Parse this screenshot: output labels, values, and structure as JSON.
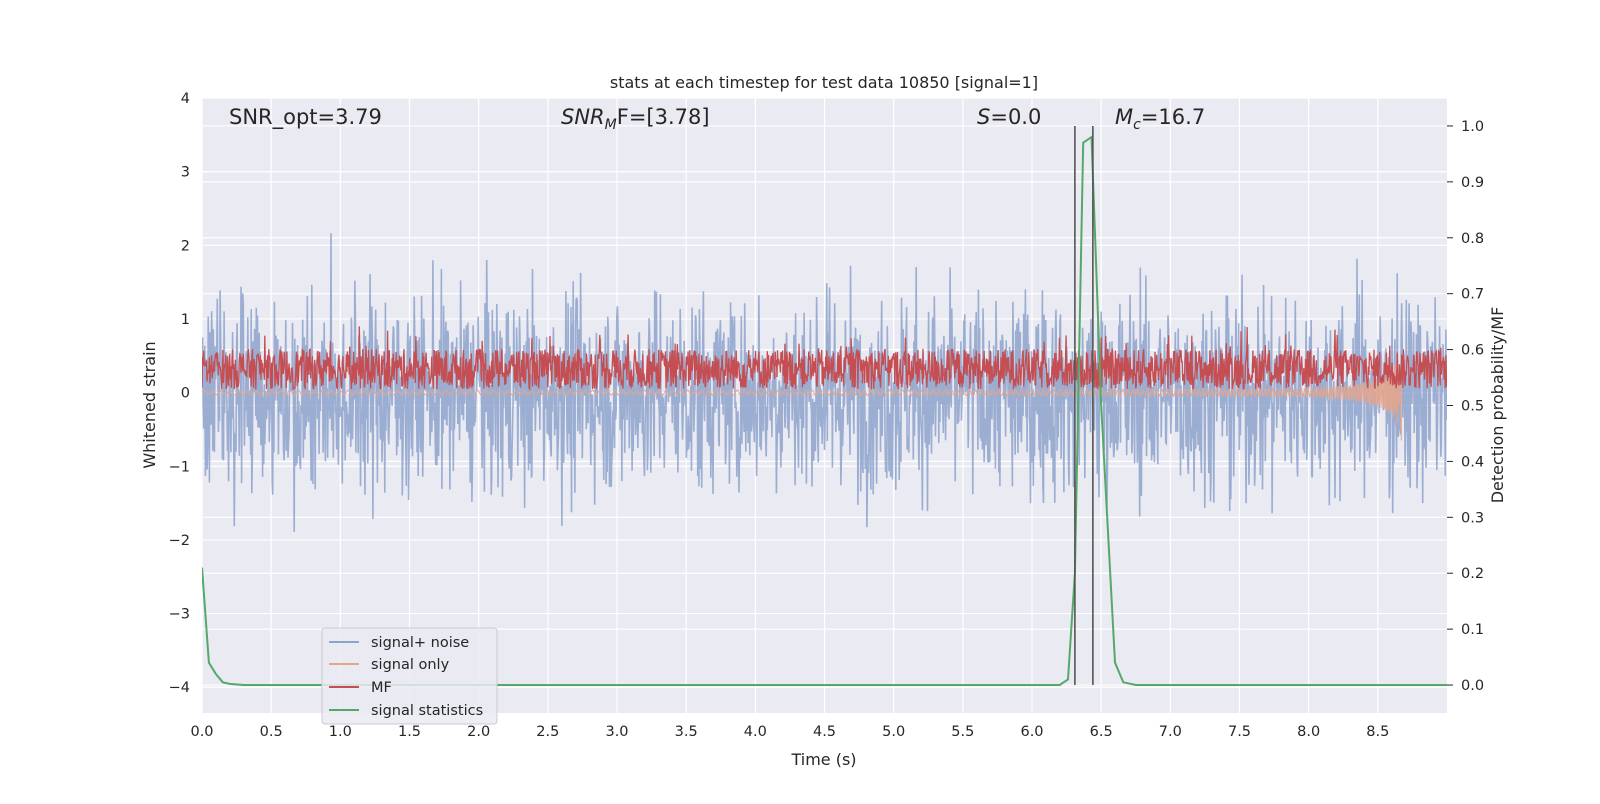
{
  "chart_data": {
    "type": "line",
    "title": "stats at each timestep for test data 10850 [signal=1]",
    "xlabel": "Time (s)",
    "ylabel": "Whitened strain",
    "ylabel_right": "Detection probability/MF",
    "xlim": [
      0.0,
      9.0
    ],
    "ylim": [
      -4.35,
      4.0
    ],
    "ylim_right": [
      -0.05,
      1.05
    ],
    "xticks": [
      "0.0",
      "0.5",
      "1.0",
      "1.5",
      "2.0",
      "2.5",
      "3.0",
      "3.5",
      "4.0",
      "4.5",
      "5.0",
      "5.5",
      "6.0",
      "6.5",
      "7.0",
      "7.5",
      "8.0",
      "8.5"
    ],
    "yticks": [
      "4",
      "3",
      "2",
      "1",
      "0",
      "−1",
      "−2",
      "−3",
      "−4"
    ],
    "yticks_right": [
      "1.0",
      "0.9",
      "0.8",
      "0.7",
      "0.6",
      "0.5",
      "0.4",
      "0.3",
      "0.2",
      "0.1",
      "0.0"
    ],
    "grid": true,
    "legend_position": "lower-left",
    "annotations": {
      "snr_opt": "SNR_opt=3.79",
      "snr_mf_sym": "SNR",
      "snr_mf_sub": "M",
      "snr_mf_rest": "F=[3.78]",
      "s_sym": "S",
      "s_rest": "=0.0",
      "mc_sym": "M",
      "mc_sub": "c",
      "mc_rest": "=16.7"
    },
    "vlines_x": [
      6.31,
      6.44
    ],
    "series": [
      {
        "name": "signal+ noise",
        "color": "#8da3cc",
        "kind": "noise",
        "amplitude_std": 1.0,
        "range": [
          -4.0,
          3.6
        ],
        "axis": "left"
      },
      {
        "name": "signal only",
        "color": "#e8a48a",
        "kind": "chirp",
        "merger_x": 8.67,
        "min_at_merger": -0.65,
        "axis": "left"
      },
      {
        "name": "MF",
        "color": "#c44e52",
        "kind": "noise_band",
        "range": [
          0.0,
          1.0
        ],
        "axis": "left"
      },
      {
        "name": "signal statistics",
        "color": "#55a868",
        "kind": "probability",
        "axis": "right",
        "x": [
          0.0,
          0.05,
          0.1,
          0.15,
          0.2,
          0.3,
          0.5,
          6.2,
          6.26,
          6.31,
          6.37,
          6.43,
          6.5,
          6.6,
          6.66,
          6.75,
          9.0
        ],
        "y": [
          0.21,
          0.04,
          0.02,
          0.005,
          0.002,
          0.0,
          0.0,
          0.0,
          0.01,
          0.2,
          0.97,
          0.98,
          0.5,
          0.04,
          0.005,
          0.0,
          0.0
        ]
      }
    ]
  }
}
